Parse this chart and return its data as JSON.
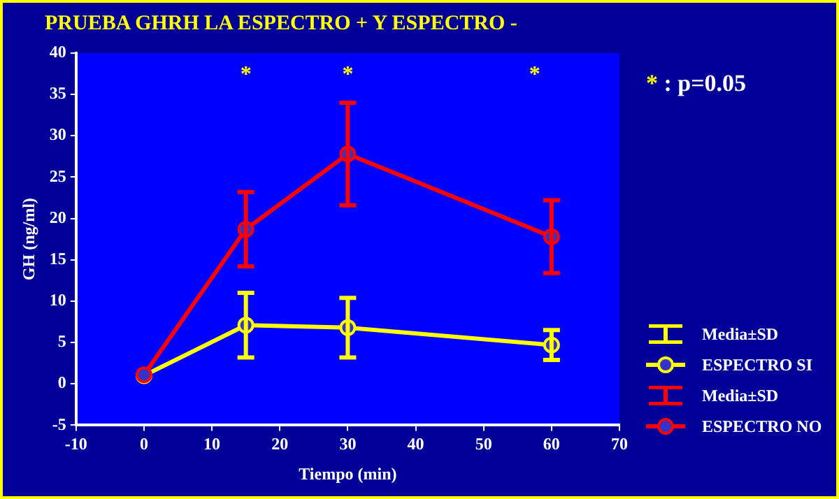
{
  "chart_data": {
    "type": "line",
    "title": "PRUEBA GHRH LA ESPECTRO + Y  ESPECTRO -",
    "xlabel": "Tiempo (min)",
    "ylabel": "GH (ng/ml)",
    "x": [
      0,
      15,
      30,
      60
    ],
    "series": [
      {
        "name": "ESPECTRO SI",
        "color": "#ffff00",
        "values": [
          1,
          7.1,
          6.8,
          4.7
        ],
        "errors": [
          null,
          3.9,
          3.6,
          1.8
        ]
      },
      {
        "name": "ESPECTRO NO",
        "color": "#ff0000",
        "values": [
          1.1,
          18.7,
          27.8,
          17.8
        ],
        "errors": [
          null,
          4.5,
          6.2,
          4.4
        ]
      }
    ],
    "xlim": [
      -10,
      70
    ],
    "xticks": [
      -10,
      0,
      10,
      20,
      30,
      40,
      50,
      60,
      70
    ],
    "ylim": [
      -5,
      40
    ],
    "yticks": [
      -5,
      0,
      5,
      10,
      15,
      20,
      25,
      30,
      35,
      40
    ],
    "grid": false,
    "legend": "right",
    "marker": "circle",
    "line_style": "solid",
    "annotations": [
      "* : p=0.05",
      "Media±SD",
      "Media±SD",
      "*",
      "*",
      "*"
    ]
  }
}
